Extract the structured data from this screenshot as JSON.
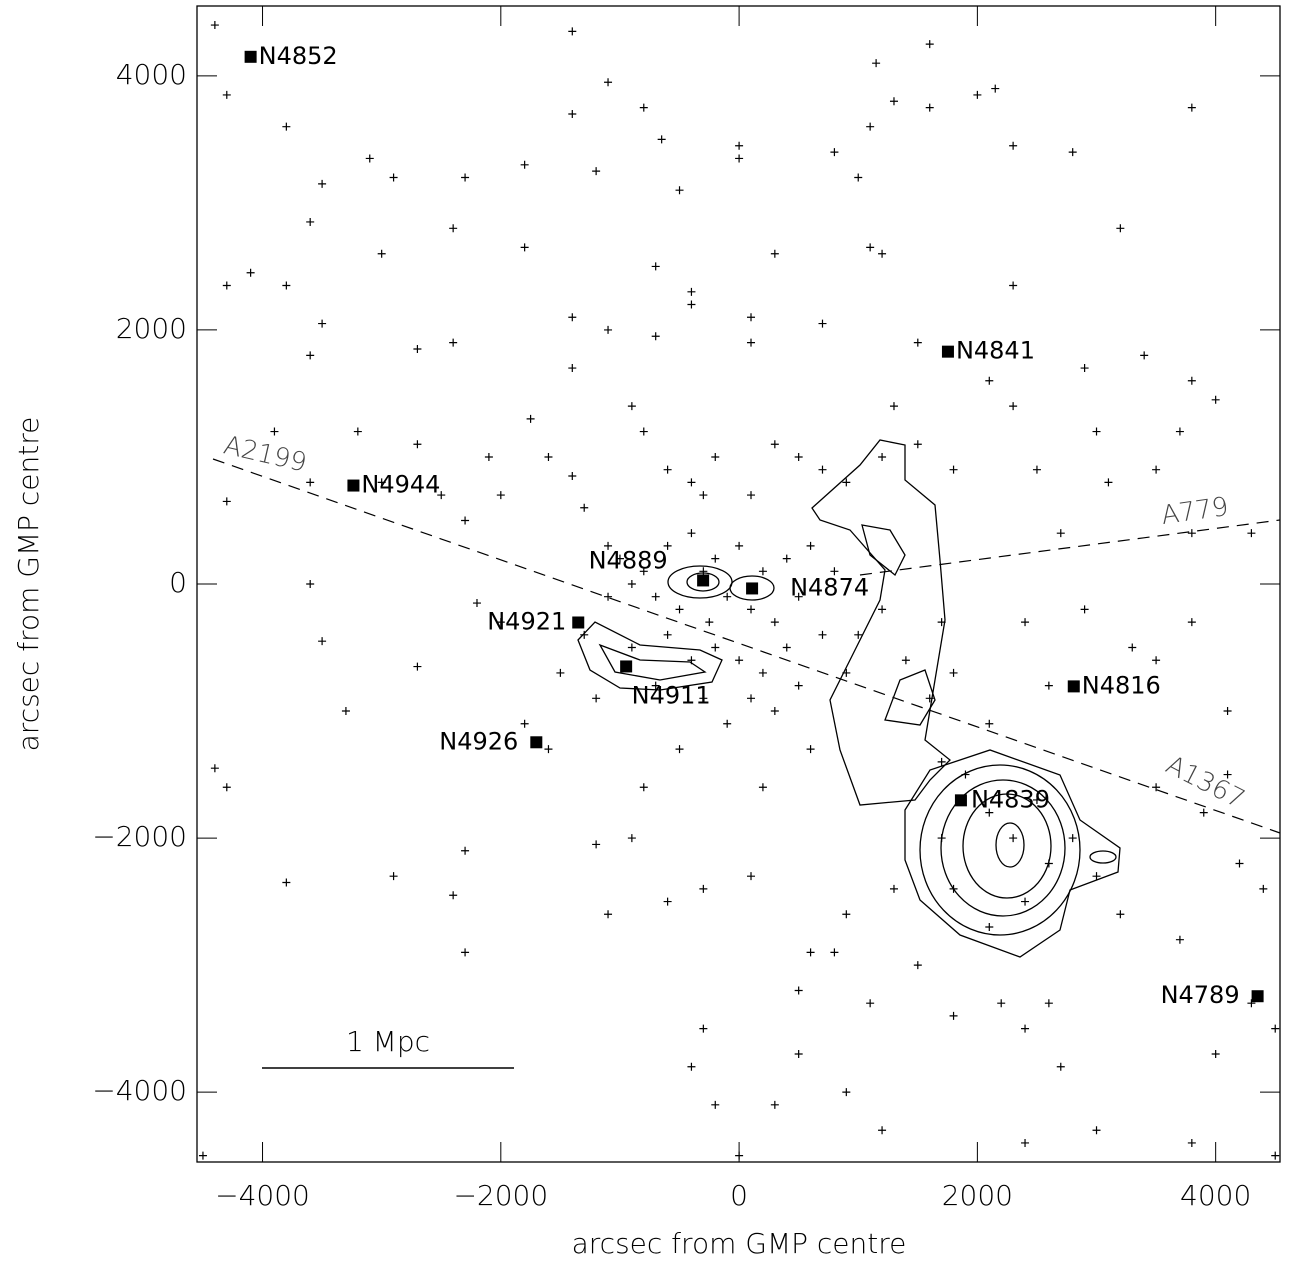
{
  "chart_data": {
    "type": "scatter",
    "xlabel": "arcsec from GMP centre",
    "ylabel": "arcsec from GMP centre",
    "xlim": [
      -4550,
      4540
    ],
    "ylim": [
      -4550,
      4550
    ],
    "xticks": [
      {
        "value": -4000,
        "label": "−4000"
      },
      {
        "value": -2000,
        "label": "−2000"
      },
      0,
      2000,
      4000
    ],
    "yticks": [
      {
        "value": -4000,
        "label": "−4000"
      },
      {
        "value": -2000,
        "label": "−2000"
      },
      0,
      2000,
      4000
    ],
    "color": "#000000",
    "x": [
      -4400,
      -4300,
      -3800,
      -3500,
      -3600,
      -3000,
      -2900,
      -3100,
      -2400,
      -2300,
      -1800,
      -1800,
      -1400,
      -1400,
      -1200,
      -1100,
      -800,
      -700,
      -650,
      -500,
      -400,
      0,
      0,
      300,
      800,
      1000,
      1100,
      1150,
      1300,
      1600,
      1600,
      2000,
      2150,
      2300,
      2800,
      3200,
      3800,
      -4300,
      -4100,
      -3800,
      -3500,
      -3600,
      -2700,
      -2400,
      -1400,
      -1400,
      -1100,
      -700,
      -400,
      100,
      100,
      700,
      1200,
      1100,
      1500,
      2100,
      2300,
      2900,
      3400,
      3800,
      4000,
      3700,
      -4300,
      -3900,
      -3600,
      -3200,
      -3000,
      -2700,
      -2500,
      -2300,
      -2100,
      -2000,
      -1750,
      -1600,
      -1400,
      -1300,
      -1100,
      -900,
      -800,
      -600,
      -400,
      -300,
      -200,
      100,
      300,
      500,
      700,
      900,
      1200,
      1300,
      1500,
      1800,
      2300,
      2500,
      2700,
      3000,
      3100,
      3500,
      3800,
      4300,
      -1000,
      -900,
      -800,
      -700,
      -600,
      -500,
      -400,
      -300,
      -250,
      -200,
      -100,
      0,
      100,
      200,
      300,
      400,
      500,
      600,
      700,
      800,
      -600,
      -400,
      -200,
      0,
      200,
      400,
      -700,
      -300,
      100,
      500,
      -1300,
      -1200,
      -1100,
      -900,
      -1500,
      -1800,
      -1600,
      -2300,
      -2400,
      -2300,
      -3300,
      -3600,
      -3500,
      -2700,
      -2200,
      -2000,
      -3800,
      -2900,
      -4400,
      -4300,
      -1200,
      -900,
      -1100,
      -600,
      -500,
      -300,
      100,
      -100,
      300,
      600,
      -800,
      200,
      900,
      1000,
      1200,
      1400,
      1600,
      1700,
      1800,
      2100,
      2400,
      2600,
      2900,
      3300,
      3500,
      3800,
      1700,
      1900,
      2100,
      2300,
      2500,
      2600,
      2400,
      2100,
      1800,
      1700,
      2800,
      3000,
      3200,
      1300,
      900,
      800,
      600,
      500,
      1100,
      1500,
      1800,
      2200,
      2400,
      2700,
      2600,
      3000,
      2400,
      1200,
      900,
      500,
      300,
      -200,
      -400,
      -300,
      0,
      4000,
      4300,
      4500,
      3700,
      3800,
      4100,
      4200,
      4400,
      3500,
      3900,
      4100,
      4500,
      -4500
    ],
    "y": [
      4400,
      3850,
      3600,
      3150,
      2850,
      2600,
      3200,
      3350,
      2800,
      3200,
      3300,
      2650,
      4350,
      3700,
      3250,
      3950,
      3750,
      2500,
      3500,
      3100,
      2300,
      3450,
      3350,
      2600,
      3400,
      3200,
      3600,
      4100,
      3800,
      4250,
      3750,
      3850,
      3900,
      3450,
      3400,
      2800,
      3750,
      2350,
      2450,
      2350,
      2050,
      1800,
      1850,
      1900,
      2100,
      1700,
      2000,
      1950,
      2200,
      1900,
      2100,
      2050,
      2600,
      2650,
      1900,
      1600,
      2350,
      1700,
      1800,
      1600,
      1450,
      1200,
      650,
      1200,
      800,
      1200,
      800,
      1100,
      700,
      500,
      1000,
      700,
      1300,
      1000,
      850,
      600,
      300,
      1400,
      1200,
      900,
      800,
      700,
      1000,
      700,
      1100,
      1000,
      900,
      800,
      1000,
      1400,
      1100,
      900,
      1400,
      900,
      400,
      1200,
      800,
      900,
      400,
      400,
      200,
      0,
      100,
      -100,
      300,
      -200,
      400,
      100,
      -300,
      200,
      -100,
      300,
      -200,
      100,
      -300,
      200,
      -100,
      300,
      -400,
      100,
      -400,
      -600,
      -500,
      -600,
      -700,
      -500,
      -800,
      -900,
      -900,
      -800,
      -400,
      -900,
      -100,
      -500,
      -700,
      -1100,
      -1300,
      -2100,
      -2450,
      -2900,
      -1000,
      0,
      -450,
      -650,
      -150,
      -300,
      -2350,
      -2300,
      -1450,
      -1600,
      -2050,
      -2000,
      -2600,
      -2500,
      -1300,
      -2400,
      -2300,
      -1100,
      -1000,
      -1300,
      -1600,
      -1600,
      -700,
      -400,
      -200,
      -600,
      -900,
      -300,
      -700,
      -1100,
      -300,
      -800,
      -200,
      -500,
      -600,
      -300,
      -1400,
      -1500,
      -1800,
      -2000,
      -1700,
      -2200,
      -2500,
      -2700,
      -2400,
      -2000,
      -2000,
      -2300,
      -2600,
      -2400,
      -2600,
      -2900,
      -2900,
      -3200,
      -3300,
      -3000,
      -3400,
      -3300,
      -3500,
      -3800,
      -3300,
      -4300,
      -4400,
      -4300,
      -4000,
      -3700,
      -4100,
      -4100,
      -3800,
      -3500,
      -4500,
      -3700,
      -3300,
      -3500,
      -2800,
      -4400,
      -1000,
      -2200,
      -2400,
      -1600,
      -1800,
      -1500,
      -4500,
      -4500
    ],
    "galaxies": {
      "labels": [
        "N4852",
        "N4841",
        "N4944",
        "N4889",
        "N4874",
        "N4921",
        "N4911",
        "N4926",
        "N4816",
        "N4839",
        "N4789"
      ],
      "x": [
        -4100,
        1753,
        -3237,
        -302,
        109,
        -1350,
        -948,
        -1702,
        2809,
        1862,
        4352
      ],
      "y": [
        4150,
        1829,
        775,
        28,
        -35,
        -303,
        -649,
        -1246,
        -806,
        -1703,
        -3245
      ]
    },
    "annotations": [
      "A2199",
      "A779",
      "A1367"
    ],
    "scale_bar": "1 Mpc"
  }
}
